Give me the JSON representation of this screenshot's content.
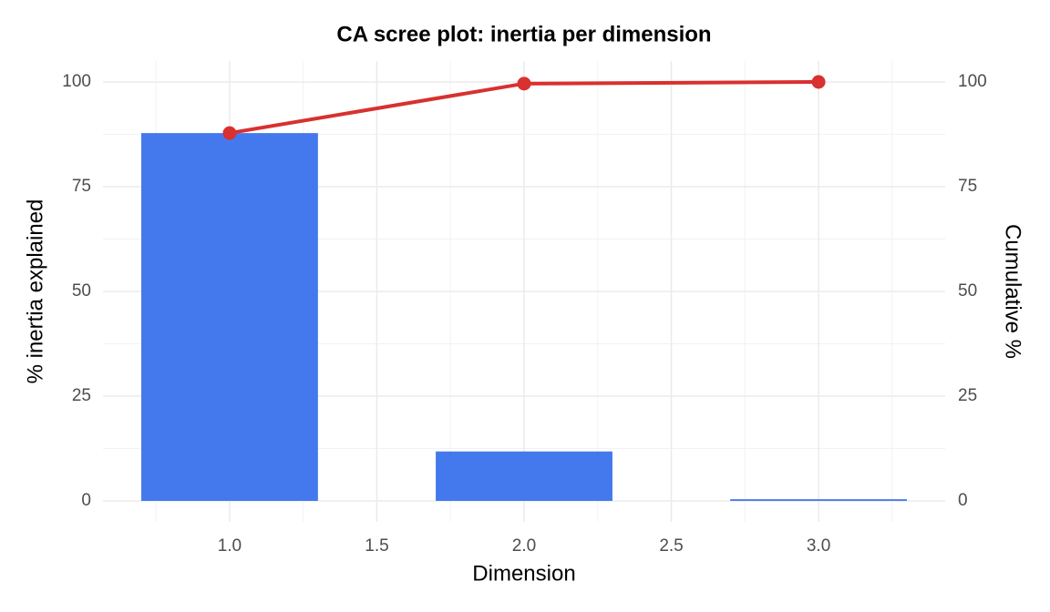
{
  "chart_data": {
    "type": "bar",
    "title": "CA scree plot: inertia per dimension",
    "x_label": "Dimension",
    "y_label": "% inertia explained",
    "y2_label": "Cumulative %",
    "x": [
      1,
      2,
      3
    ],
    "series": [
      {
        "type": "bar",
        "color": "#4479ed",
        "values": [
          87.8,
          11.8,
          0.4
        ]
      },
      {
        "type": "line",
        "color": "#d93030",
        "axis": "y2",
        "values": [
          87.8,
          99.6,
          100
        ]
      }
    ],
    "xlim": [
      0.57,
      3.43
    ],
    "xticks": [
      {
        "value": 1,
        "label": "1.0"
      },
      {
        "value": 1.5,
        "label": "1.5"
      },
      {
        "value": 2,
        "label": "2.0"
      },
      {
        "value": 2.5,
        "label": "2.5"
      },
      {
        "value": 3,
        "label": "3.0"
      }
    ],
    "ylim": [
      -5,
      105
    ],
    "yticks": [
      0,
      25,
      50,
      75,
      100
    ],
    "y2lim": [
      -5,
      105
    ],
    "y2ticks": [
      0,
      25,
      50,
      75,
      100
    ],
    "grid": true
  }
}
